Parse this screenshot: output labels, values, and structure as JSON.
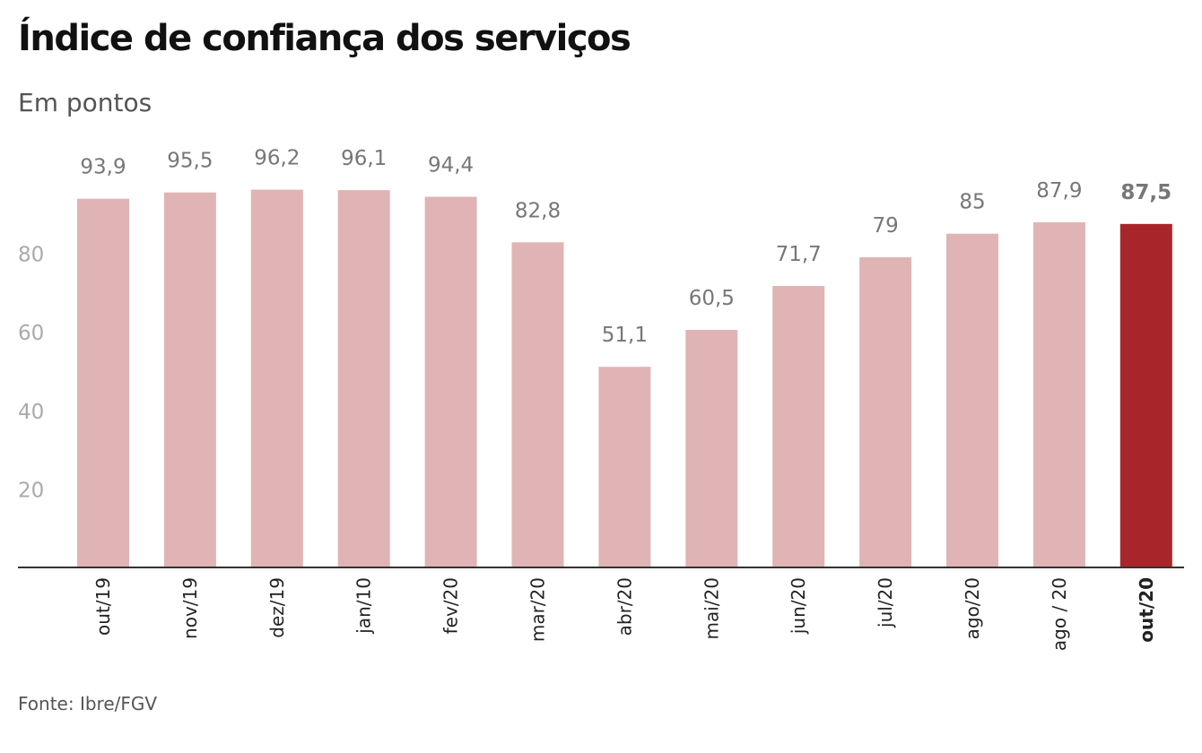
{
  "chart_data": {
    "type": "bar",
    "title": "Índice de confiança dos serviços",
    "subtitle": "Em pontos",
    "source": "Fonte: Ibre/FGV",
    "categories": [
      "out/19",
      "nov/19",
      "dez/19",
      "jan/10",
      "fev/20",
      "mar/20",
      "abr/20",
      "mai/20",
      "jun/20",
      "jul/20",
      "ago/20",
      "ago / 20",
      "out/20"
    ],
    "values": [
      93.9,
      95.5,
      96.2,
      96.1,
      94.4,
      82.8,
      51.1,
      60.5,
      71.7,
      79,
      85,
      87.9,
      87.5
    ],
    "value_labels": [
      "93,9",
      "95,5",
      "96,2",
      "96,1",
      "94,4",
      "82,8",
      "51,1",
      "60,5",
      "71,7",
      "79",
      "85",
      "87,9",
      "87,5"
    ],
    "highlight_index": 12,
    "yticks": [
      20,
      40,
      60,
      80
    ],
    "ylim": [
      0,
      100
    ],
    "xlabel": "",
    "ylabel": "",
    "grid": false,
    "colors": {
      "bar": "#e0b4b4",
      "highlight": "#a8262a",
      "axis": "#333333"
    }
  }
}
